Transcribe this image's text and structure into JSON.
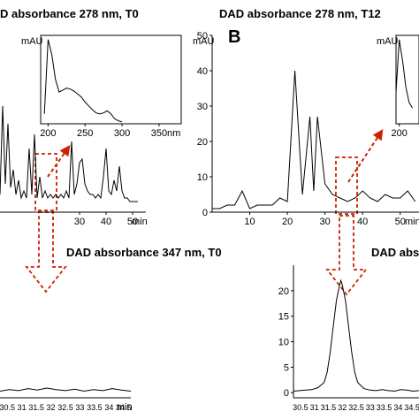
{
  "titles": {
    "panelA_top": "D absorbance 278 nm,  T0",
    "panelB_top": "DAD absorbance 278 nm,  T12",
    "panelA_bottom": "DAD absorbance 347 nm,  T0",
    "panelB_bottom": "DAD abso",
    "panelB_letter": "B"
  },
  "colors": {
    "arrow": "#cc2200",
    "trace": "#000000"
  },
  "chart_data": [
    {
      "type": "line",
      "title": "D absorbance 278 nm,  T0",
      "xlabel": "min",
      "ylabel": "",
      "xlim": [
        0,
        55
      ],
      "ylim": [
        0,
        50
      ],
      "xticks": [
        30,
        40,
        50
      ],
      "x": [
        0,
        1,
        2,
        3,
        4,
        5,
        6,
        7,
        8,
        9,
        10,
        11,
        12,
        13,
        14,
        15,
        16,
        17,
        18,
        19,
        20,
        21,
        22,
        23,
        24,
        25,
        26,
        27,
        28,
        29,
        30,
        31,
        32,
        33,
        34,
        35,
        36,
        37,
        38,
        39,
        40,
        41,
        42,
        43,
        44,
        45,
        46,
        47,
        48,
        49,
        50,
        51,
        52
      ],
      "y": [
        5,
        30,
        8,
        25,
        7,
        12,
        5,
        9,
        4,
        6,
        4,
        18,
        5,
        22,
        4,
        10,
        4,
        6,
        4,
        5,
        4,
        5,
        4,
        5,
        4,
        6,
        4,
        20,
        5,
        8,
        14,
        15,
        8,
        6,
        5,
        5,
        4,
        5,
        4,
        10,
        18,
        6,
        5,
        9,
        6,
        13,
        6,
        4,
        4,
        3,
        3,
        3,
        3
      ]
    },
    {
      "type": "line",
      "title": "",
      "xlabel": "nm",
      "ylabel": "mAU",
      "xlim": [
        190,
        380
      ],
      "xticks": [
        200,
        250,
        300,
        350
      ],
      "x": [
        195,
        200,
        205,
        210,
        215,
        220,
        225,
        230,
        235,
        240,
        245,
        250,
        255,
        260,
        265,
        270,
        275,
        280,
        285,
        290,
        295,
        300
      ],
      "y": [
        10,
        85,
        70,
        45,
        32,
        34,
        36,
        35,
        33,
        30,
        27,
        22,
        18,
        14,
        11,
        10,
        11,
        13,
        10,
        5,
        3,
        2
      ]
    },
    {
      "type": "line",
      "title": "DAD absorbance 278 nm,  T12",
      "xlabel": "min",
      "ylabel": "mAU",
      "xlim": [
        0,
        55
      ],
      "ylim": [
        0,
        50
      ],
      "yticks": [
        0,
        10,
        20,
        30,
        40,
        50
      ],
      "xticks": [
        10,
        20,
        30,
        40,
        50
      ],
      "x": [
        0,
        2,
        4,
        6,
        8,
        10,
        12,
        14,
        16,
        18,
        20,
        22,
        24,
        26,
        27,
        28,
        30,
        32,
        34,
        36,
        38,
        40,
        42,
        44,
        46,
        48,
        50,
        52,
        54
      ],
      "y": [
        1,
        1,
        2,
        2,
        6,
        1,
        2,
        2,
        2,
        4,
        3,
        40,
        5,
        27,
        6,
        27,
        8,
        5,
        4,
        3,
        4,
        6,
        4,
        3,
        5,
        4,
        4,
        6,
        3
      ]
    },
    {
      "type": "line",
      "title": "",
      "xlabel": "",
      "ylabel": "mAU",
      "xlim": [
        195,
        230
      ],
      "xticks": [
        200
      ],
      "x": [
        195,
        200,
        205,
        210,
        215,
        220
      ],
      "y": [
        30,
        80,
        60,
        35,
        20,
        15
      ]
    },
    {
      "type": "line",
      "title": "DAD absorbance 347 nm,  T0",
      "xlabel": "min",
      "ylabel": "",
      "xlim": [
        30.5,
        34.7
      ],
      "ylim": [
        -1,
        25
      ],
      "xtick_labels": [
        "30.5",
        "31",
        "31.5",
        "32",
        "32.5",
        "33",
        "33.5",
        "34",
        "34.5"
      ],
      "x": [
        30.5,
        30.8,
        31.1,
        31.4,
        31.7,
        32.0,
        32.3,
        32.6,
        32.9,
        33.2,
        33.5,
        33.8,
        34.1,
        34.4,
        34.7
      ],
      "y": [
        0.3,
        0.6,
        0.4,
        0.8,
        0.5,
        0.9,
        0.6,
        0.4,
        0.7,
        0.3,
        0.6,
        0.4,
        0.8,
        0.5,
        0.3
      ]
    },
    {
      "type": "line",
      "title": "DAD abso",
      "xlabel": "",
      "ylabel": "",
      "xlim": [
        30.5,
        34.6
      ],
      "ylim": [
        -1,
        25
      ],
      "yticks": [
        0,
        5,
        10,
        15,
        20
      ],
      "xtick_labels": [
        "30.5",
        "31",
        "31.5",
        "32",
        "32.5",
        "33",
        "33.5",
        "34",
        "34.5"
      ],
      "x": [
        30.5,
        30.7,
        30.9,
        31.1,
        31.3,
        31.5,
        31.6,
        31.7,
        31.8,
        31.9,
        32.0,
        32.05,
        32.1,
        32.2,
        32.3,
        32.4,
        32.5,
        32.6,
        32.8,
        33.0,
        33.2,
        33.4,
        33.6,
        33.8,
        34.0,
        34.2,
        34.4,
        34.6
      ],
      "y": [
        0.3,
        0.4,
        0.5,
        0.6,
        1,
        2,
        4,
        8,
        13,
        18,
        21,
        22,
        21,
        18,
        13,
        8,
        4,
        2,
        0.8,
        0.5,
        0.4,
        0.6,
        0.4,
        0.3,
        0.6,
        0.5,
        0.3,
        0.4
      ]
    }
  ]
}
